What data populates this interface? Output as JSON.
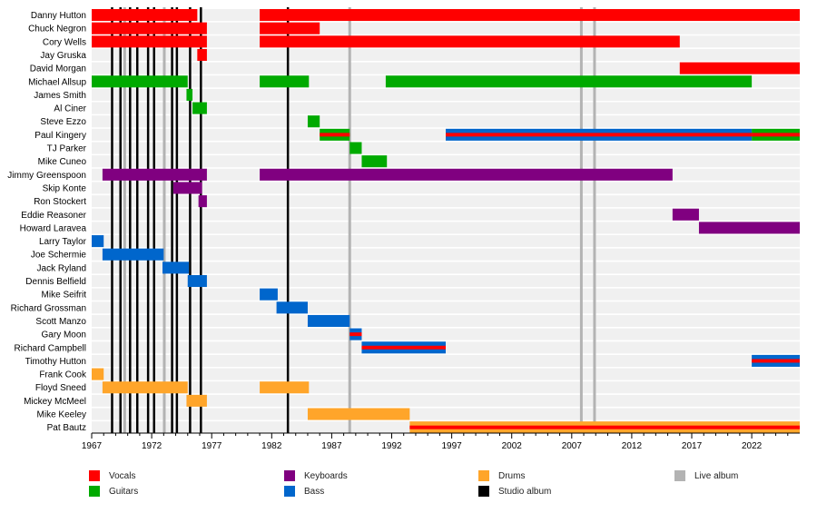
{
  "chart_data": {
    "type": "timeline",
    "xlim": [
      1967,
      2026
    ],
    "x_ticks": [
      1967,
      1972,
      1977,
      1982,
      1987,
      1992,
      1997,
      2002,
      2007,
      2012,
      2017,
      2022
    ],
    "role_colors": {
      "Vocals": "#ff0000",
      "Guitars": "#00aa00",
      "Keyboards": "#800080",
      "Bass": "#0066cc",
      "Drums": "#ffa52a"
    },
    "members": [
      {
        "name": "Danny Hutton",
        "periods": [
          {
            "start": 1967,
            "end": 1975.8,
            "roles": [
              "Vocals"
            ]
          },
          {
            "start": 1981,
            "end": 2026,
            "roles": [
              "Vocals"
            ]
          }
        ]
      },
      {
        "name": "Chuck Negron",
        "periods": [
          {
            "start": 1967,
            "end": 1976.6,
            "roles": [
              "Vocals"
            ]
          },
          {
            "start": 1981,
            "end": 1986,
            "roles": [
              "Vocals"
            ]
          }
        ]
      },
      {
        "name": "Cory Wells",
        "periods": [
          {
            "start": 1967,
            "end": 1976.6,
            "roles": [
              "Vocals"
            ]
          },
          {
            "start": 1981,
            "end": 2016,
            "roles": [
              "Vocals"
            ]
          }
        ]
      },
      {
        "name": "Jay Gruska",
        "periods": [
          {
            "start": 1975.8,
            "end": 1976.6,
            "roles": [
              "Vocals"
            ]
          }
        ]
      },
      {
        "name": "David Morgan",
        "periods": [
          {
            "start": 2016,
            "end": 2026,
            "roles": [
              "Vocals"
            ]
          }
        ]
      },
      {
        "name": "Michael Allsup",
        "periods": [
          {
            "start": 1967,
            "end": 1975,
            "roles": [
              "Guitars"
            ]
          },
          {
            "start": 1981,
            "end": 1985.1,
            "roles": [
              "Guitars"
            ]
          },
          {
            "start": 1991.5,
            "end": 2022,
            "roles": [
              "Guitars"
            ]
          }
        ]
      },
      {
        "name": "James Smith",
        "periods": [
          {
            "start": 1974.9,
            "end": 1975.4,
            "roles": [
              "Guitars"
            ]
          }
        ]
      },
      {
        "name": "Al Ciner",
        "periods": [
          {
            "start": 1975.4,
            "end": 1976.6,
            "roles": [
              "Guitars"
            ]
          }
        ]
      },
      {
        "name": "Steve Ezzo",
        "periods": [
          {
            "start": 1985,
            "end": 1986,
            "roles": [
              "Guitars"
            ]
          }
        ]
      },
      {
        "name": "Paul Kingery",
        "periods": [
          {
            "start": 1986,
            "end": 1988.5,
            "roles": [
              "Guitars",
              "Vocals"
            ]
          },
          {
            "start": 1996.5,
            "end": 2022,
            "roles": [
              "Bass",
              "Vocals"
            ]
          },
          {
            "start": 2022,
            "end": 2026,
            "roles": [
              "Guitars",
              "Vocals"
            ]
          }
        ]
      },
      {
        "name": "TJ Parker",
        "periods": [
          {
            "start": 1988.5,
            "end": 1989.5,
            "roles": [
              "Guitars"
            ]
          }
        ]
      },
      {
        "name": "Mike Cuneo",
        "periods": [
          {
            "start": 1989.5,
            "end": 1991.6,
            "roles": [
              "Guitars"
            ]
          }
        ]
      },
      {
        "name": "Jimmy Greenspoon",
        "periods": [
          {
            "start": 1967.9,
            "end": 1976.6,
            "roles": [
              "Keyboards"
            ]
          },
          {
            "start": 1981,
            "end": 2015.4,
            "roles": [
              "Keyboards"
            ]
          }
        ]
      },
      {
        "name": "Skip Konte",
        "periods": [
          {
            "start": 1973.8,
            "end": 1976.2,
            "roles": [
              "Keyboards"
            ]
          }
        ]
      },
      {
        "name": "Ron Stockert",
        "periods": [
          {
            "start": 1975.9,
            "end": 1976.6,
            "roles": [
              "Keyboards"
            ]
          }
        ]
      },
      {
        "name": "Eddie Reasoner",
        "periods": [
          {
            "start": 2015.4,
            "end": 2017.6,
            "roles": [
              "Keyboards"
            ]
          }
        ]
      },
      {
        "name": "Howard Laravea",
        "periods": [
          {
            "start": 2017.6,
            "end": 2026,
            "roles": [
              "Keyboards"
            ]
          }
        ]
      },
      {
        "name": "Larry Taylor",
        "periods": [
          {
            "start": 1967,
            "end": 1968,
            "roles": [
              "Bass"
            ]
          }
        ]
      },
      {
        "name": "Joe Schermie",
        "periods": [
          {
            "start": 1967.9,
            "end": 1973,
            "roles": [
              "Bass"
            ]
          }
        ]
      },
      {
        "name": "Jack Ryland",
        "periods": [
          {
            "start": 1972.9,
            "end": 1975.1,
            "roles": [
              "Bass"
            ]
          }
        ]
      },
      {
        "name": "Dennis Belfield",
        "periods": [
          {
            "start": 1975,
            "end": 1976.6,
            "roles": [
              "Bass"
            ]
          }
        ]
      },
      {
        "name": "Mike Seifrit",
        "periods": [
          {
            "start": 1981,
            "end": 1982.5,
            "roles": [
              "Bass"
            ]
          }
        ]
      },
      {
        "name": "Richard Grossman",
        "periods": [
          {
            "start": 1982.4,
            "end": 1985,
            "roles": [
              "Bass"
            ]
          }
        ]
      },
      {
        "name": "Scott Manzo",
        "periods": [
          {
            "start": 1985,
            "end": 1988.5,
            "roles": [
              "Bass"
            ]
          }
        ]
      },
      {
        "name": "Gary Moon",
        "periods": [
          {
            "start": 1988.5,
            "end": 1989.5,
            "roles": [
              "Bass",
              "Vocals"
            ]
          }
        ]
      },
      {
        "name": "Richard Campbell",
        "periods": [
          {
            "start": 1989.5,
            "end": 1996.5,
            "roles": [
              "Bass",
              "Vocals"
            ]
          }
        ]
      },
      {
        "name": "Timothy Hutton",
        "periods": [
          {
            "start": 2022,
            "end": 2026,
            "roles": [
              "Bass",
              "Vocals"
            ]
          }
        ]
      },
      {
        "name": "Frank Cook",
        "periods": [
          {
            "start": 1967,
            "end": 1968,
            "roles": [
              "Drums"
            ]
          }
        ]
      },
      {
        "name": "Floyd Sneed",
        "periods": [
          {
            "start": 1967.9,
            "end": 1975,
            "roles": [
              "Drums"
            ]
          },
          {
            "start": 1981,
            "end": 1985.1,
            "roles": [
              "Drums"
            ]
          }
        ]
      },
      {
        "name": "Mickey McMeel",
        "periods": [
          {
            "start": 1974.9,
            "end": 1976.6,
            "roles": [
              "Drums"
            ]
          }
        ]
      },
      {
        "name": "Mike Keeley",
        "periods": [
          {
            "start": 1985,
            "end": 1993.5,
            "roles": [
              "Drums"
            ]
          }
        ]
      },
      {
        "name": "Pat Bautz",
        "periods": [
          {
            "start": 1993.5,
            "end": 2026,
            "roles": [
              "Drums",
              "Vocals"
            ]
          }
        ]
      }
    ],
    "studio_albums": [
      1968.7,
      1969.4,
      1970.2,
      1970.8,
      1971.7,
      1972.2,
      1973.7,
      1974.1,
      1975.2,
      1976.1,
      1983.35
    ],
    "live_albums": [
      1969.75,
      1973.05,
      1988.5,
      2007.8,
      2008.9
    ],
    "legend": [
      {
        "label": "Vocals",
        "color": "#ff0000"
      },
      {
        "label": "Guitars",
        "color": "#00aa00"
      },
      {
        "label": "Keyboards",
        "color": "#800080"
      },
      {
        "label": "Bass",
        "color": "#0066cc"
      },
      {
        "label": "Drums",
        "color": "#ffa52a"
      },
      {
        "label": "Studio album",
        "color": "#000000"
      },
      {
        "label": "Live album",
        "color": "#b3b3b3"
      }
    ]
  }
}
